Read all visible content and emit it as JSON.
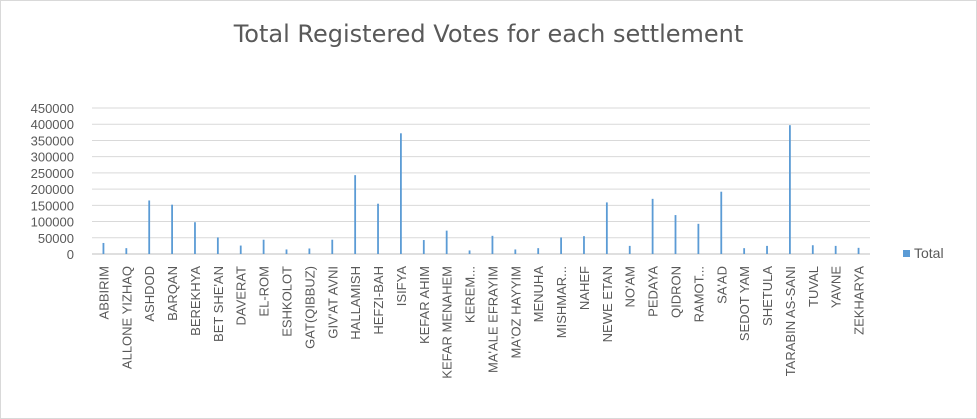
{
  "chart_data": {
    "type": "bar",
    "title": "Total Registered Votes for each settlement",
    "xlabel": "",
    "ylabel": "",
    "ylim": [
      0,
      450000
    ],
    "y_ticks": [
      "0",
      "50000",
      "100000",
      "150000",
      "200000",
      "250000",
      "300000",
      "350000",
      "400000",
      "450000"
    ],
    "grid": true,
    "legend_position": "right",
    "color": "#5b9bd5",
    "categories": [
      "ABBIRIM",
      "ALLONE YIZHAQ",
      "ASHDOD",
      "BARQAN",
      "BEREKHYA",
      "BET SHE'AN",
      "DAVERAT",
      "EL-ROM",
      "ESHKOLOT",
      "GAT(QIBBUZ)",
      "GIV'AT AVNI",
      "HALLAMISH",
      "HEFZI-BAH",
      "ISIFYA",
      "KEFAR AHIM",
      "KEFAR MENAHEM",
      "KEREM...",
      "MA'ALE EFRAYIM",
      "MA'OZ HAYYIM",
      "MENUHA",
      "MISHMAR...",
      "NAHEF",
      "NEWE ETAN",
      "NO'AM",
      "PEDAYA",
      "QIDRON",
      "RAMOT...",
      "SA'AD",
      "SEDOT YAM",
      "SHETULA",
      "TARABIN AS-SANI",
      "TUVAL",
      "YAVNE",
      "ZEKHARYA"
    ],
    "series": [
      {
        "name": "Total",
        "values": [
          34000,
          18000,
          165000,
          152000,
          98000,
          51000,
          26000,
          44000,
          14000,
          17000,
          44000,
          243000,
          155000,
          372000,
          43000,
          72000,
          11000,
          56000,
          14000,
          18000,
          51000,
          55000,
          159000,
          25000,
          170000,
          120000,
          93000,
          192000,
          18000,
          25000,
          397000,
          27000,
          25000,
          19000
        ]
      }
    ]
  },
  "legend": {
    "label": "Total"
  }
}
